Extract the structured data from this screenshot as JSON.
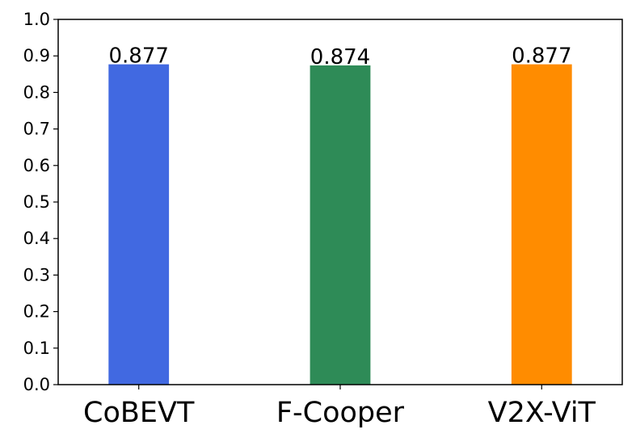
{
  "chart_data": {
    "type": "bar",
    "categories": [
      "CoBEVT",
      "F-Cooper",
      "V2X-ViT"
    ],
    "values": [
      0.877,
      0.874,
      0.877
    ],
    "data_labels": [
      "0.877",
      "0.874",
      "0.877"
    ],
    "colors": [
      "#4169E1",
      "#2E8B57",
      "#FF8C00"
    ],
    "title": "",
    "xlabel": "",
    "ylabel": "",
    "ylim": [
      0,
      1.0
    ],
    "yticks": [
      0.0,
      0.1,
      0.2,
      0.3,
      0.4,
      0.5,
      0.6,
      0.7,
      0.8,
      0.9,
      1.0
    ],
    "ytick_labels": [
      "0.0",
      "0.1",
      "0.2",
      "0.3",
      "0.4",
      "0.5",
      "0.6",
      "0.7",
      "0.8",
      "0.9",
      "1.0"
    ],
    "grid": false,
    "legend": "none"
  }
}
